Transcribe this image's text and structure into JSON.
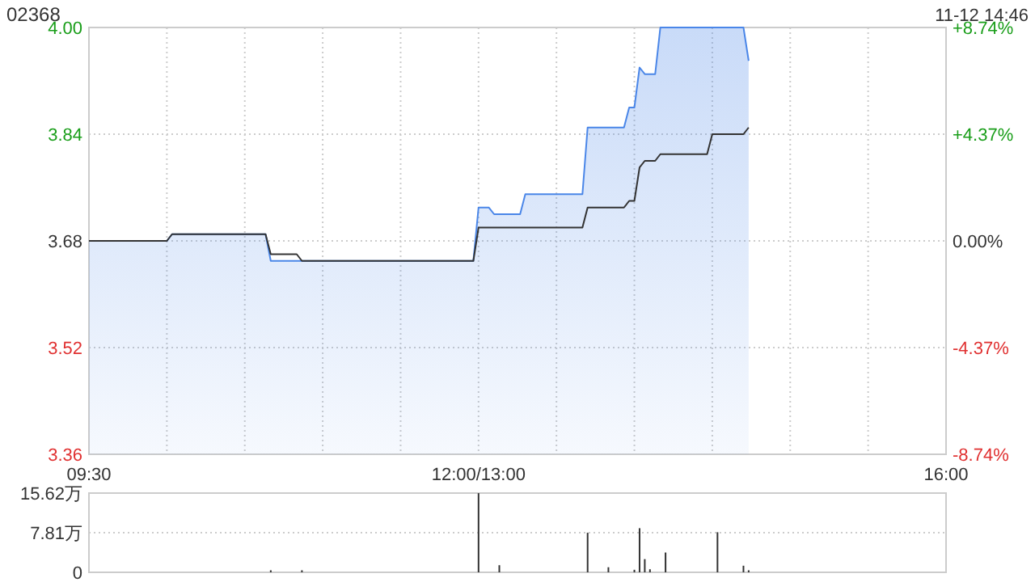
{
  "chart_data": [
    {
      "type": "line",
      "title": "02368",
      "annotations": [
        "11-12 14:46"
      ],
      "categories": [
        "09:30",
        null,
        null,
        null,
        null,
        null,
        null,
        null,
        null,
        null,
        null,
        null,
        null,
        null,
        null,
        null,
        null,
        null,
        null,
        null,
        null,
        null,
        null,
        null,
        null,
        null,
        null,
        null,
        null,
        null,
        null,
        null,
        null,
        null,
        null,
        null,
        null,
        null,
        null,
        null,
        null,
        null,
        null,
        null,
        null,
        null,
        null,
        null,
        null,
        null,
        null,
        null,
        null,
        null,
        null,
        null,
        null,
        null,
        null,
        null,
        null,
        null,
        null,
        null,
        null,
        null,
        null,
        null,
        null,
        null,
        null,
        null,
        null,
        null,
        null,
        "12:00/13:00",
        null,
        null,
        null,
        null,
        null,
        null,
        null,
        null,
        null,
        null,
        null,
        null,
        null,
        null,
        null,
        null,
        null,
        null,
        null,
        null,
        null,
        null,
        null,
        null,
        null,
        null,
        null,
        null,
        null,
        null,
        null,
        null,
        null,
        null,
        null,
        null,
        null,
        null,
        null,
        null,
        null,
        null,
        null,
        null,
        null,
        null,
        null,
        null,
        null,
        null,
        null,
        null,
        null,
        null,
        null,
        null,
        null,
        null,
        null,
        null,
        null,
        null,
        null,
        null,
        null,
        null,
        null,
        null,
        null,
        null,
        null,
        null,
        null,
        null,
        null,
        null,
        null,
        null,
        null,
        null,
        null,
        null,
        null,
        null,
        null,
        null,
        null,
        null,
        null,
        "16:00"
      ],
      "ylim": [
        3.36,
        4.0
      ],
      "yticks": [
        3.36,
        3.52,
        3.68,
        3.84,
        {
          "value": 4.0,
          "label": "4.00"
        }
      ],
      "y2lim": [
        -8.74,
        8.74
      ],
      "y2ticks": [
        {
          "value": -8.74,
          "label": "-8.74%"
        },
        {
          "value": -4.37,
          "label": "-4.37%"
        },
        {
          "value": 0,
          "label": "0.00%"
        },
        {
          "value": 4.37,
          "label": "+4.37%"
        },
        {
          "value": 8.74,
          "label": "+8.74%"
        }
      ],
      "grid": true,
      "line_style": "solid",
      "series": [
        {
          "type": "area",
          "color": "#4a86e8",
          "values": [
            3.68,
            3.68,
            3.68,
            3.68,
            3.68,
            3.68,
            3.68,
            3.68,
            3.68,
            3.68,
            3.68,
            3.68,
            3.68,
            3.68,
            3.68,
            3.68,
            3.69,
            3.69,
            3.69,
            3.69,
            3.69,
            3.69,
            3.69,
            3.69,
            3.69,
            3.69,
            3.69,
            3.69,
            3.69,
            3.69,
            3.69,
            3.69,
            3.69,
            3.69,
            3.69,
            3.65,
            3.65,
            3.65,
            3.65,
            3.65,
            3.65,
            3.65,
            3.65,
            3.65,
            3.65,
            3.65,
            3.65,
            3.65,
            3.65,
            3.65,
            3.65,
            3.65,
            3.65,
            3.65,
            3.65,
            3.65,
            3.65,
            3.65,
            3.65,
            3.65,
            3.65,
            3.65,
            3.65,
            3.65,
            3.65,
            3.65,
            3.65,
            3.65,
            3.65,
            3.65,
            3.65,
            3.65,
            3.65,
            3.65,
            3.65,
            3.73,
            3.73,
            3.73,
            3.72,
            3.72,
            3.72,
            3.72,
            3.72,
            3.72,
            3.75,
            3.75,
            3.75,
            3.75,
            3.75,
            3.75,
            3.75,
            3.75,
            3.75,
            3.75,
            3.75,
            3.75,
            3.85,
            3.85,
            3.85,
            3.85,
            3.85,
            3.85,
            3.85,
            3.85,
            3.88,
            3.88,
            3.94,
            3.93,
            3.93,
            3.93,
            4.0,
            4.0,
            4.0,
            4.0,
            4.0,
            4.0,
            4.0,
            4.0,
            4.0,
            4.0,
            4.0,
            4.0,
            4.0,
            4.0,
            4.0,
            4.0,
            4.0,
            3.95,
            null,
            null,
            null,
            null,
            null,
            null,
            null,
            null,
            null,
            null,
            null,
            null,
            null,
            null,
            null,
            null,
            null,
            null,
            null,
            null,
            null,
            null,
            null,
            null,
            null,
            null,
            null,
            null,
            null,
            null,
            null,
            null,
            null,
            null,
            null,
            null,
            null,
            null
          ]
        },
        {
          "color": "#333333",
          "values": [
            3.68,
            3.68,
            3.68,
            3.68,
            3.68,
            3.68,
            3.68,
            3.68,
            3.68,
            3.68,
            3.68,
            3.68,
            3.68,
            3.68,
            3.68,
            3.68,
            3.69,
            3.69,
            3.69,
            3.69,
            3.69,
            3.69,
            3.69,
            3.69,
            3.69,
            3.69,
            3.69,
            3.69,
            3.69,
            3.69,
            3.69,
            3.69,
            3.69,
            3.69,
            3.69,
            3.66,
            3.66,
            3.66,
            3.66,
            3.66,
            3.66,
            3.65,
            3.65,
            3.65,
            3.65,
            3.65,
            3.65,
            3.65,
            3.65,
            3.65,
            3.65,
            3.65,
            3.65,
            3.65,
            3.65,
            3.65,
            3.65,
            3.65,
            3.65,
            3.65,
            3.65,
            3.65,
            3.65,
            3.65,
            3.65,
            3.65,
            3.65,
            3.65,
            3.65,
            3.65,
            3.65,
            3.65,
            3.65,
            3.65,
            3.65,
            3.7,
            3.7,
            3.7,
            3.7,
            3.7,
            3.7,
            3.7,
            3.7,
            3.7,
            3.7,
            3.7,
            3.7,
            3.7,
            3.7,
            3.7,
            3.7,
            3.7,
            3.7,
            3.7,
            3.7,
            3.7,
            3.73,
            3.73,
            3.73,
            3.73,
            3.73,
            3.73,
            3.73,
            3.73,
            3.74,
            3.74,
            3.79,
            3.8,
            3.8,
            3.8,
            3.81,
            3.81,
            3.81,
            3.81,
            3.81,
            3.81,
            3.81,
            3.81,
            3.81,
            3.81,
            3.84,
            3.84,
            3.84,
            3.84,
            3.84,
            3.84,
            3.84,
            3.85,
            null,
            null,
            null,
            null,
            null,
            null,
            null,
            null,
            null,
            null,
            null,
            null,
            null,
            null,
            null,
            null,
            null,
            null,
            null,
            null,
            null,
            null,
            null,
            null,
            null,
            null,
            null,
            null,
            null,
            null,
            null,
            null,
            null,
            null,
            null,
            null,
            null,
            null
          ]
        }
      ]
    },
    {
      "type": "bar",
      "tick_labels": "y",
      "ylim": [
        0,
        15.62
      ],
      "yticks": [
        0,
        {
          "value": 7.81,
          "label": "7.81万"
        },
        {
          "value": 15.62,
          "label": "15.62万"
        }
      ],
      "grid": "y",
      "categories": [
        null,
        null,
        null,
        null,
        null,
        null,
        null,
        null,
        null,
        null,
        null,
        null,
        null,
        null,
        null,
        null,
        null,
        null,
        null,
        null,
        null,
        null,
        null,
        null,
        null,
        null,
        null,
        null,
        null,
        null,
        null,
        null,
        null,
        null,
        null,
        null,
        null,
        null,
        null,
        null,
        null,
        null,
        null,
        null,
        null,
        null,
        null,
        null,
        null,
        null,
        null,
        null,
        null,
        null,
        null,
        null,
        null,
        null,
        null,
        null,
        null,
        null,
        null,
        null,
        null,
        null,
        null,
        null,
        null,
        null,
        null,
        null,
        null,
        null,
        null,
        null,
        null,
        null,
        null,
        null,
        null,
        null,
        null,
        null,
        null,
        null,
        null,
        null,
        null,
        null,
        null,
        null,
        null,
        null,
        null,
        null,
        null,
        null,
        null,
        null,
        null,
        null,
        null,
        null,
        null,
        null,
        null,
        null,
        null,
        null,
        null,
        null,
        null,
        null,
        null,
        null,
        null,
        null,
        null,
        null,
        null,
        null,
        null,
        null,
        null,
        null,
        null,
        null,
        null,
        null,
        null,
        null,
        null,
        null,
        null,
        null,
        null,
        null,
        null,
        null,
        null,
        null,
        null,
        null,
        null,
        null,
        null,
        null,
        null,
        null,
        null,
        null,
        null,
        null,
        null,
        null,
        null,
        null,
        null,
        null,
        null,
        null,
        null,
        null,
        null,
        null
      ],
      "series": [
        {
          "color": "#333333",
          "values": [
            null,
            null,
            null,
            null,
            null,
            null,
            null,
            null,
            null,
            null,
            null,
            null,
            null,
            null,
            null,
            null,
            null,
            null,
            null,
            null,
            null,
            null,
            null,
            null,
            null,
            null,
            null,
            null,
            null,
            null,
            null,
            null,
            null,
            null,
            null,
            0.4,
            null,
            null,
            null,
            null,
            null,
            0.4,
            null,
            null,
            null,
            null,
            null,
            null,
            null,
            null,
            null,
            null,
            null,
            null,
            null,
            null,
            null,
            null,
            null,
            null,
            null,
            null,
            null,
            null,
            null,
            null,
            null,
            null,
            null,
            null,
            null,
            null,
            null,
            null,
            null,
            15.6,
            null,
            null,
            null,
            1.4,
            null,
            null,
            null,
            null,
            null,
            null,
            null,
            null,
            null,
            null,
            null,
            null,
            null,
            null,
            null,
            null,
            7.8,
            null,
            null,
            null,
            1.0,
            null,
            null,
            null,
            null,
            0.5,
            8.7,
            2.6,
            0.6,
            null,
            null,
            3.9,
            null,
            null,
            null,
            null,
            null,
            null,
            null,
            null,
            null,
            7.9,
            null,
            null,
            null,
            null,
            1.3,
            0.4,
            null,
            null,
            null,
            null,
            null,
            null,
            null,
            null,
            null,
            null,
            null,
            null,
            null,
            null,
            null,
            null,
            null,
            null,
            null,
            null,
            null,
            null,
            null,
            null,
            null,
            null,
            null,
            null,
            null,
            null,
            null,
            null,
            null,
            null,
            null,
            null,
            null,
            null
          ]
        }
      ]
    }
  ]
}
